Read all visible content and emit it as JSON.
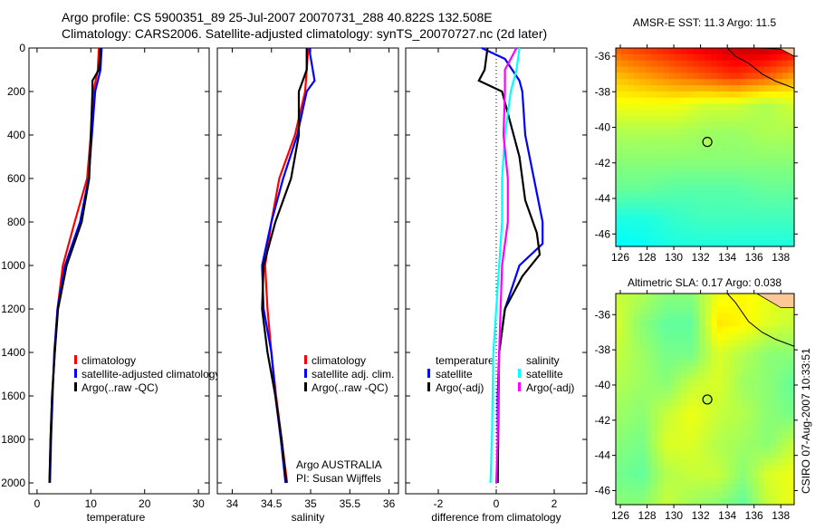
{
  "header": {
    "line1": "Argo profile: CS 5900351_89 25-Jul-2007 20070731_288 40.822S 132.508E",
    "line2": "Climatology: CARS2006. Satellite-adjusted climatology: synTS_20070727.nc (2d later)"
  },
  "colors": {
    "climatology": "#ff0000",
    "satellite": "#0000ff",
    "argo": "#000000",
    "sal_satellite": "#00ffff",
    "sal_argo": "#ff00ff"
  },
  "footer": "CSIRO 07-Aug-2007 10:33:51",
  "credit": {
    "line1": "Argo AUSTRALIA",
    "line2": "PI: Susan Wijffels"
  },
  "chart_data": [
    {
      "type": "line",
      "id": "temperature",
      "xlabel": "temperature",
      "ylabel": "",
      "xlim": [
        -1.5,
        32
      ],
      "ylim": [
        0,
        2050
      ],
      "y_reversed": true,
      "xticks": [
        0,
        10,
        20,
        30
      ],
      "yticks": [
        0,
        200,
        400,
        600,
        800,
        1000,
        1200,
        1400,
        1600,
        1800,
        2000
      ],
      "legend": [
        "climatology",
        "satellite-adjusted climatology",
        "Argo(..raw -QC)"
      ],
      "series": [
        {
          "name": "climatology",
          "color": "#ff0000",
          "depth": [
            0,
            100,
            200,
            400,
            600,
            800,
            1000,
            1200,
            1400,
            1600,
            1800,
            2000
          ],
          "values": [
            11.5,
            11.3,
            10.5,
            10,
            9.3,
            7,
            4.8,
            3.8,
            3.3,
            2.8,
            2.5,
            2.3
          ]
        },
        {
          "name": "satellite-adjusted climatology",
          "color": "#0000ff",
          "depth": [
            0,
            100,
            200,
            400,
            600,
            800,
            1000,
            1200,
            1400,
            1600,
            1800,
            2000
          ],
          "values": [
            12,
            11.8,
            10.8,
            10.2,
            9.6,
            8,
            5.2,
            3.8,
            3.2,
            2.9,
            2.6,
            2.4
          ]
        },
        {
          "name": "Argo(..raw -QC)",
          "color": "#000000",
          "depth": [
            0,
            100,
            150,
            200,
            400,
            600,
            800,
            1000,
            1200,
            1400,
            1600,
            1800,
            2000
          ],
          "values": [
            11.8,
            11.5,
            10.3,
            10.3,
            10,
            9.7,
            8.3,
            5.5,
            3.9,
            3.3,
            2.8,
            2.5,
            2.3
          ]
        }
      ]
    },
    {
      "type": "line",
      "id": "salinity",
      "xlabel": "salinity",
      "xlim": [
        33.81,
        36.12
      ],
      "ylim": [
        0,
        2050
      ],
      "y_reversed": true,
      "xticks": [
        34,
        34.5,
        35,
        35.5,
        36
      ],
      "legend": [
        "climatology",
        "satellite adj. clim.",
        "Argo(..raw -QC)"
      ],
      "series": [
        {
          "name": "climatology",
          "color": "#ff0000",
          "depth": [
            0,
            200,
            400,
            600,
            800,
            1000,
            1200,
            1400,
            1600,
            1800,
            2000
          ],
          "values": [
            34.97,
            34.93,
            34.8,
            34.6,
            34.5,
            34.42,
            34.45,
            34.5,
            34.56,
            34.63,
            34.7
          ]
        },
        {
          "name": "satellite adj. clim.",
          "color": "#0000ff",
          "depth": [
            0,
            150,
            200,
            400,
            600,
            800,
            1000,
            1200,
            1400,
            1600,
            1800,
            2000
          ],
          "values": [
            34.98,
            35.05,
            34.95,
            34.83,
            34.65,
            34.5,
            34.38,
            34.4,
            34.5,
            34.55,
            34.62,
            34.68
          ]
        },
        {
          "name": "Argo(..raw -QC)",
          "color": "#000000",
          "depth": [
            0,
            100,
            150,
            200,
            400,
            600,
            800,
            1000,
            1200,
            1400,
            1600,
            1800,
            2000
          ],
          "values": [
            34.95,
            34.95,
            34.9,
            34.85,
            34.85,
            34.75,
            34.55,
            34.4,
            34.38,
            34.45,
            34.55,
            34.63,
            34.69
          ]
        }
      ]
    },
    {
      "type": "line",
      "id": "difference",
      "xlabel": "difference from climatology",
      "xlim": [
        -3.125,
        3.125
      ],
      "ylim": [
        0,
        2050
      ],
      "y_reversed": true,
      "xticks": [
        -2,
        0,
        2
      ],
      "legend_groups": [
        {
          "title": "temperature",
          "items": [
            "satellite",
            "Argo(-adj)"
          ]
        },
        {
          "title": "salinity",
          "items": [
            "satellite",
            "Argo(-adj)"
          ]
        }
      ],
      "series": [
        {
          "name": "temperature satellite",
          "color": "#0000ff",
          "depth": [
            0,
            50,
            150,
            200,
            400,
            600,
            800,
            900,
            1000,
            1200,
            1400,
            1600,
            2000
          ],
          "values": [
            -0.5,
            0.3,
            0.8,
            0.9,
            1.0,
            1.3,
            1.6,
            1.6,
            0.8,
            0.3,
            0.1,
            0.05,
            0.05
          ]
        },
        {
          "name": "temperature Argo(-adj)",
          "color": "#000000",
          "depth": [
            0,
            100,
            150,
            200,
            400,
            500,
            700,
            850,
            950,
            1050,
            1200,
            1400,
            2000
          ],
          "values": [
            -0.3,
            -0.4,
            -0.6,
            0.2,
            0.6,
            0.8,
            1.0,
            1.4,
            1.5,
            0.9,
            0.3,
            0.1,
            0.05
          ]
        },
        {
          "name": "salinity satellite",
          "color": "#00ffff",
          "depth": [
            0,
            100,
            200,
            400,
            600,
            800,
            1000,
            1400,
            1800,
            2000
          ],
          "values": [
            0.8,
            0.7,
            0.5,
            0.3,
            0.2,
            0.2,
            0.1,
            -0.1,
            -0.15,
            -0.2
          ]
        },
        {
          "name": "salinity Argo(-adj)",
          "color": "#ff00ff",
          "depth": [
            0,
            100,
            200,
            400,
            600,
            800,
            1000,
            1400,
            1800,
            2000
          ],
          "values": [
            0.7,
            0.3,
            0.3,
            0.25,
            0.4,
            0.4,
            0.2,
            0.1,
            0.05,
            0.0
          ]
        }
      ]
    },
    {
      "type": "heatmap",
      "id": "sst",
      "title": "AMSR-E SST: 11.3 Argo: 11.5",
      "xlim": [
        125.66,
        139.0
      ],
      "ylim": [
        -46.7,
        -35.54
      ],
      "xticks": [
        126,
        128,
        130,
        132,
        134,
        136,
        138
      ],
      "yticks": [
        -36,
        -38,
        -40,
        -42,
        -44,
        -46
      ],
      "xticklabels": [
        "126",
        "128",
        "130",
        "132",
        "134",
        "136",
        "138"
      ],
      "yticklabels": [
        "-36",
        "-38",
        "-40",
        "-42",
        "-44",
        "-46"
      ],
      "crange": [
        8,
        18
      ],
      "colormap": "jet",
      "marker": {
        "lon": 132.508,
        "lat": -40.822,
        "value": 11.5
      },
      "grid": [
        [
          15,
          15.5,
          16,
          16.5,
          17,
          17,
          16.5
        ],
        [
          13.5,
          14,
          14.5,
          15,
          15.5,
          15,
          14
        ],
        [
          12.5,
          12.5,
          12.5,
          12,
          12,
          11.5,
          12
        ],
        [
          11.5,
          11.5,
          11.5,
          11.3,
          11.2,
          11.5,
          11.5
        ],
        [
          11,
          11,
          11,
          11,
          11,
          11,
          11
        ],
        [
          10.5,
          10.5,
          10.3,
          10.3,
          10.3,
          10.5,
          10.5
        ],
        [
          9.5,
          9.5,
          9.8,
          10,
          10,
          10,
          10
        ],
        [
          9,
          9.2,
          9.5,
          9.5,
          9.5,
          9.5,
          9.5
        ]
      ]
    },
    {
      "type": "heatmap",
      "id": "sla",
      "title": "Altimetric SLA: 0.17 Argo: 0.038",
      "xlim": [
        125.66,
        139.0
      ],
      "ylim": [
        -46.8,
        -34.8
      ],
      "xticks": [
        126,
        128,
        130,
        132,
        134,
        136,
        138
      ],
      "yticks": [
        -36,
        -38,
        -40,
        -42,
        -44,
        -46
      ],
      "xticklabels": [
        "126",
        "128",
        "130",
        "132",
        "134",
        "136",
        "138"
      ],
      "yticklabels": [
        "-36",
        "-38",
        "-40",
        "-42",
        "-44",
        "-46"
      ],
      "crange": [
        -0.5,
        0.5
      ],
      "colormap": "jet",
      "marker": {
        "lon": 132.508,
        "lat": -40.822,
        "value": 0.038
      },
      "grid": [
        [
          0.05,
          0.0,
          -0.1,
          -0.1,
          0.15,
          0.2,
          0.15,
          0.1
        ],
        [
          0.1,
          -0.1,
          -0.2,
          -0.2,
          0.25,
          0.2,
          0.1,
          0.05
        ],
        [
          0.05,
          -0.05,
          -0.15,
          -0.15,
          0.1,
          0.0,
          -0.1,
          -0.1
        ],
        [
          0.0,
          -0.05,
          -0.1,
          0.05,
          0.1,
          -0.05,
          -0.1,
          -0.2
        ],
        [
          -0.05,
          -0.1,
          0.05,
          0.15,
          0.05,
          0.0,
          -0.1,
          -0.15
        ],
        [
          -0.1,
          -0.15,
          0.1,
          0.1,
          0.0,
          -0.05,
          -0.1,
          0.05
        ],
        [
          -0.15,
          -0.2,
          0.0,
          0.05,
          0.05,
          -0.1,
          0.1,
          0.15
        ],
        [
          -0.1,
          -0.1,
          0.05,
          -0.05,
          -0.1,
          -0.2,
          0.05,
          0.15
        ]
      ]
    }
  ]
}
